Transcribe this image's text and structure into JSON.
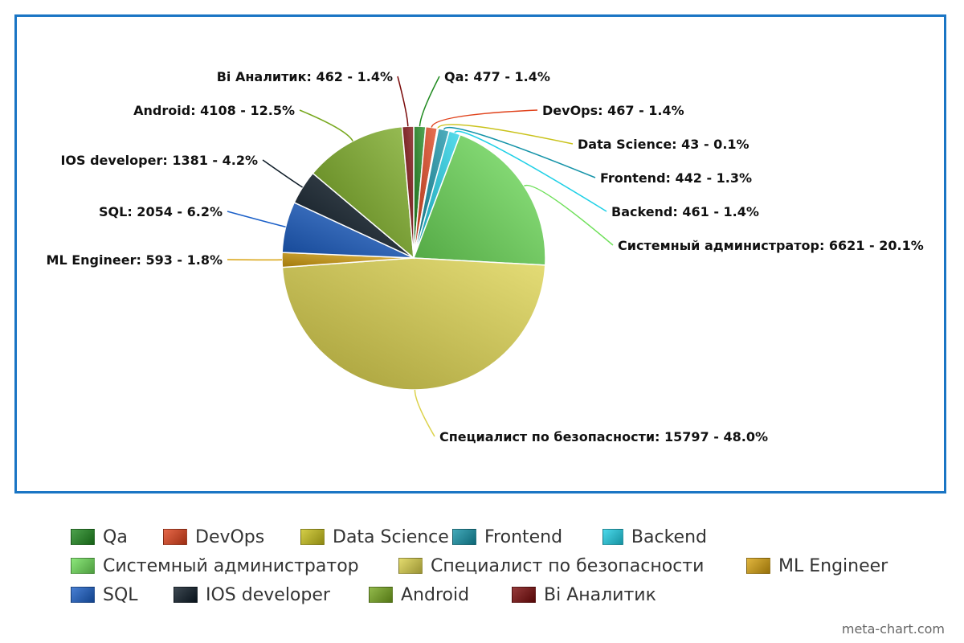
{
  "chart_data": {
    "type": "pie",
    "title": "",
    "slices": [
      {
        "name": "Qa",
        "value": 477,
        "percent": "1.4%",
        "color": "#1f8a1f",
        "label": "Qa: 477 - 1.4%"
      },
      {
        "name": "DevOps",
        "value": 467,
        "percent": "1.4%",
        "color": "#e0421b",
        "label": "DevOps: 467 - 1.4%"
      },
      {
        "name": "Data Science",
        "value": 43,
        "percent": "0.1%",
        "color": "#c9c21a",
        "label": "Data Science: 43 - 0.1%"
      },
      {
        "name": "Frontend",
        "value": 442,
        "percent": "1.3%",
        "color": "#1493a8",
        "label": "Frontend: 442 - 1.3%"
      },
      {
        "name": "Backend",
        "value": 461,
        "percent": "1.4%",
        "color": "#1fd0e6",
        "label": "Backend: 461 - 1.4%"
      },
      {
        "name": "Системный администратор",
        "value": 6621,
        "percent": "20.1%",
        "color": "#6fe05a",
        "label": "Системный администратор: 6621 - 20.1%"
      },
      {
        "name": "Специалист по безопасности",
        "value": 15797,
        "percent": "48.0%",
        "color": "#dcd24a",
        "label": "Специалист по безопасности: 15797 - 48.0%"
      },
      {
        "name": "ML Engineer",
        "value": 593,
        "percent": "1.8%",
        "color": "#d8a20e",
        "label": "ML Engineer: 593 - 1.8%"
      },
      {
        "name": "SQL",
        "value": 2054,
        "percent": "6.2%",
        "color": "#1a5fc8",
        "label": "SQL: 2054 - 6.2%"
      },
      {
        "name": "IOS developer",
        "value": 1381,
        "percent": "4.2%",
        "color": "#0c1a26",
        "label": "IOS developer: 1381 - 4.2%"
      },
      {
        "name": "Android",
        "value": 4108,
        "percent": "12.5%",
        "color": "#77a81e",
        "label": "Android: 4108 - 12.5%"
      },
      {
        "name": "Bi Аналитик",
        "value": 462,
        "percent": "1.4%",
        "color": "#7a0a0a",
        "label": "Bi Аналитик: 462 - 1.4%"
      }
    ],
    "legend_placement": "bottom"
  },
  "watermark": "meta-chart.com"
}
